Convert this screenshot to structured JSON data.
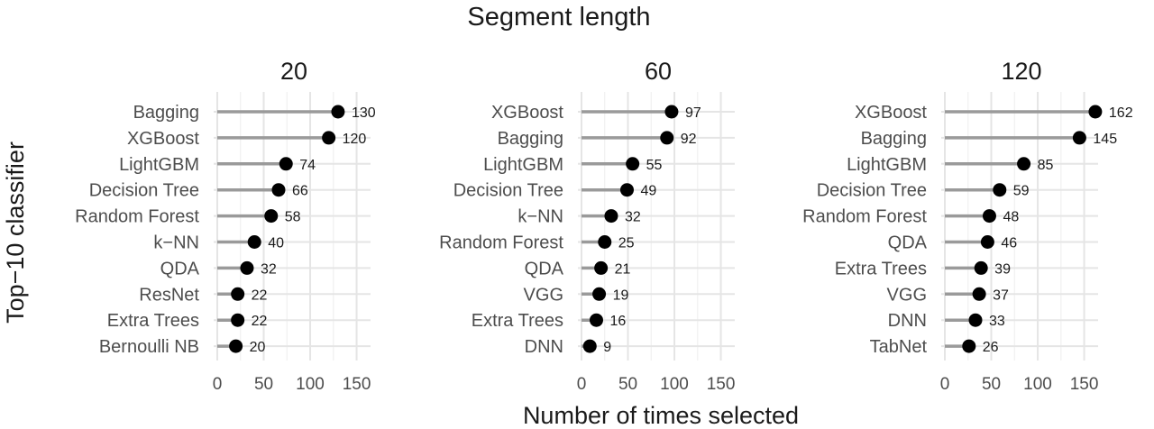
{
  "figure": {
    "supertitle": "Segment length",
    "xlabel": "Number of times selected",
    "ylabel": "Top−10 classifier"
  },
  "chart_data": [
    {
      "type": "lollipop",
      "title": "20",
      "xlim": [
        0,
        165
      ],
      "xticks": [
        "0",
        "50",
        "100",
        "150"
      ],
      "categories": [
        "Bagging",
        "XGBoost",
        "LightGBM",
        "Decision Tree",
        "Random Forest",
        "k−NN",
        "QDA",
        "ResNet",
        "Extra Trees",
        "Bernoulli NB"
      ],
      "values": [
        130,
        120,
        74,
        66,
        58,
        40,
        32,
        22,
        22,
        20
      ],
      "colors": {
        "stem": "#9a9a9a",
        "point": "#000000"
      }
    },
    {
      "type": "lollipop",
      "title": "60",
      "xlim": [
        0,
        165
      ],
      "xticks": [
        "0",
        "50",
        "100",
        "150"
      ],
      "categories": [
        "XGBoost",
        "Bagging",
        "LightGBM",
        "Decision Tree",
        "k−NN",
        "Random Forest",
        "QDA",
        "VGG",
        "Extra Trees",
        "DNN"
      ],
      "values": [
        97,
        92,
        55,
        49,
        32,
        25,
        21,
        19,
        16,
        9
      ],
      "colors": {
        "stem": "#9a9a9a",
        "point": "#000000"
      }
    },
    {
      "type": "lollipop",
      "title": "120",
      "xlim": [
        0,
        165
      ],
      "xticks": [
        "0",
        "50",
        "100",
        "150"
      ],
      "categories": [
        "XGBoost",
        "Bagging",
        "LightGBM",
        "Decision Tree",
        "Random Forest",
        "QDA",
        "Extra Trees",
        "VGG",
        "DNN",
        "TabNet"
      ],
      "values": [
        162,
        145,
        85,
        59,
        48,
        46,
        39,
        37,
        33,
        26
      ],
      "colors": {
        "stem": "#9a9a9a",
        "point": "#000000"
      }
    }
  ]
}
